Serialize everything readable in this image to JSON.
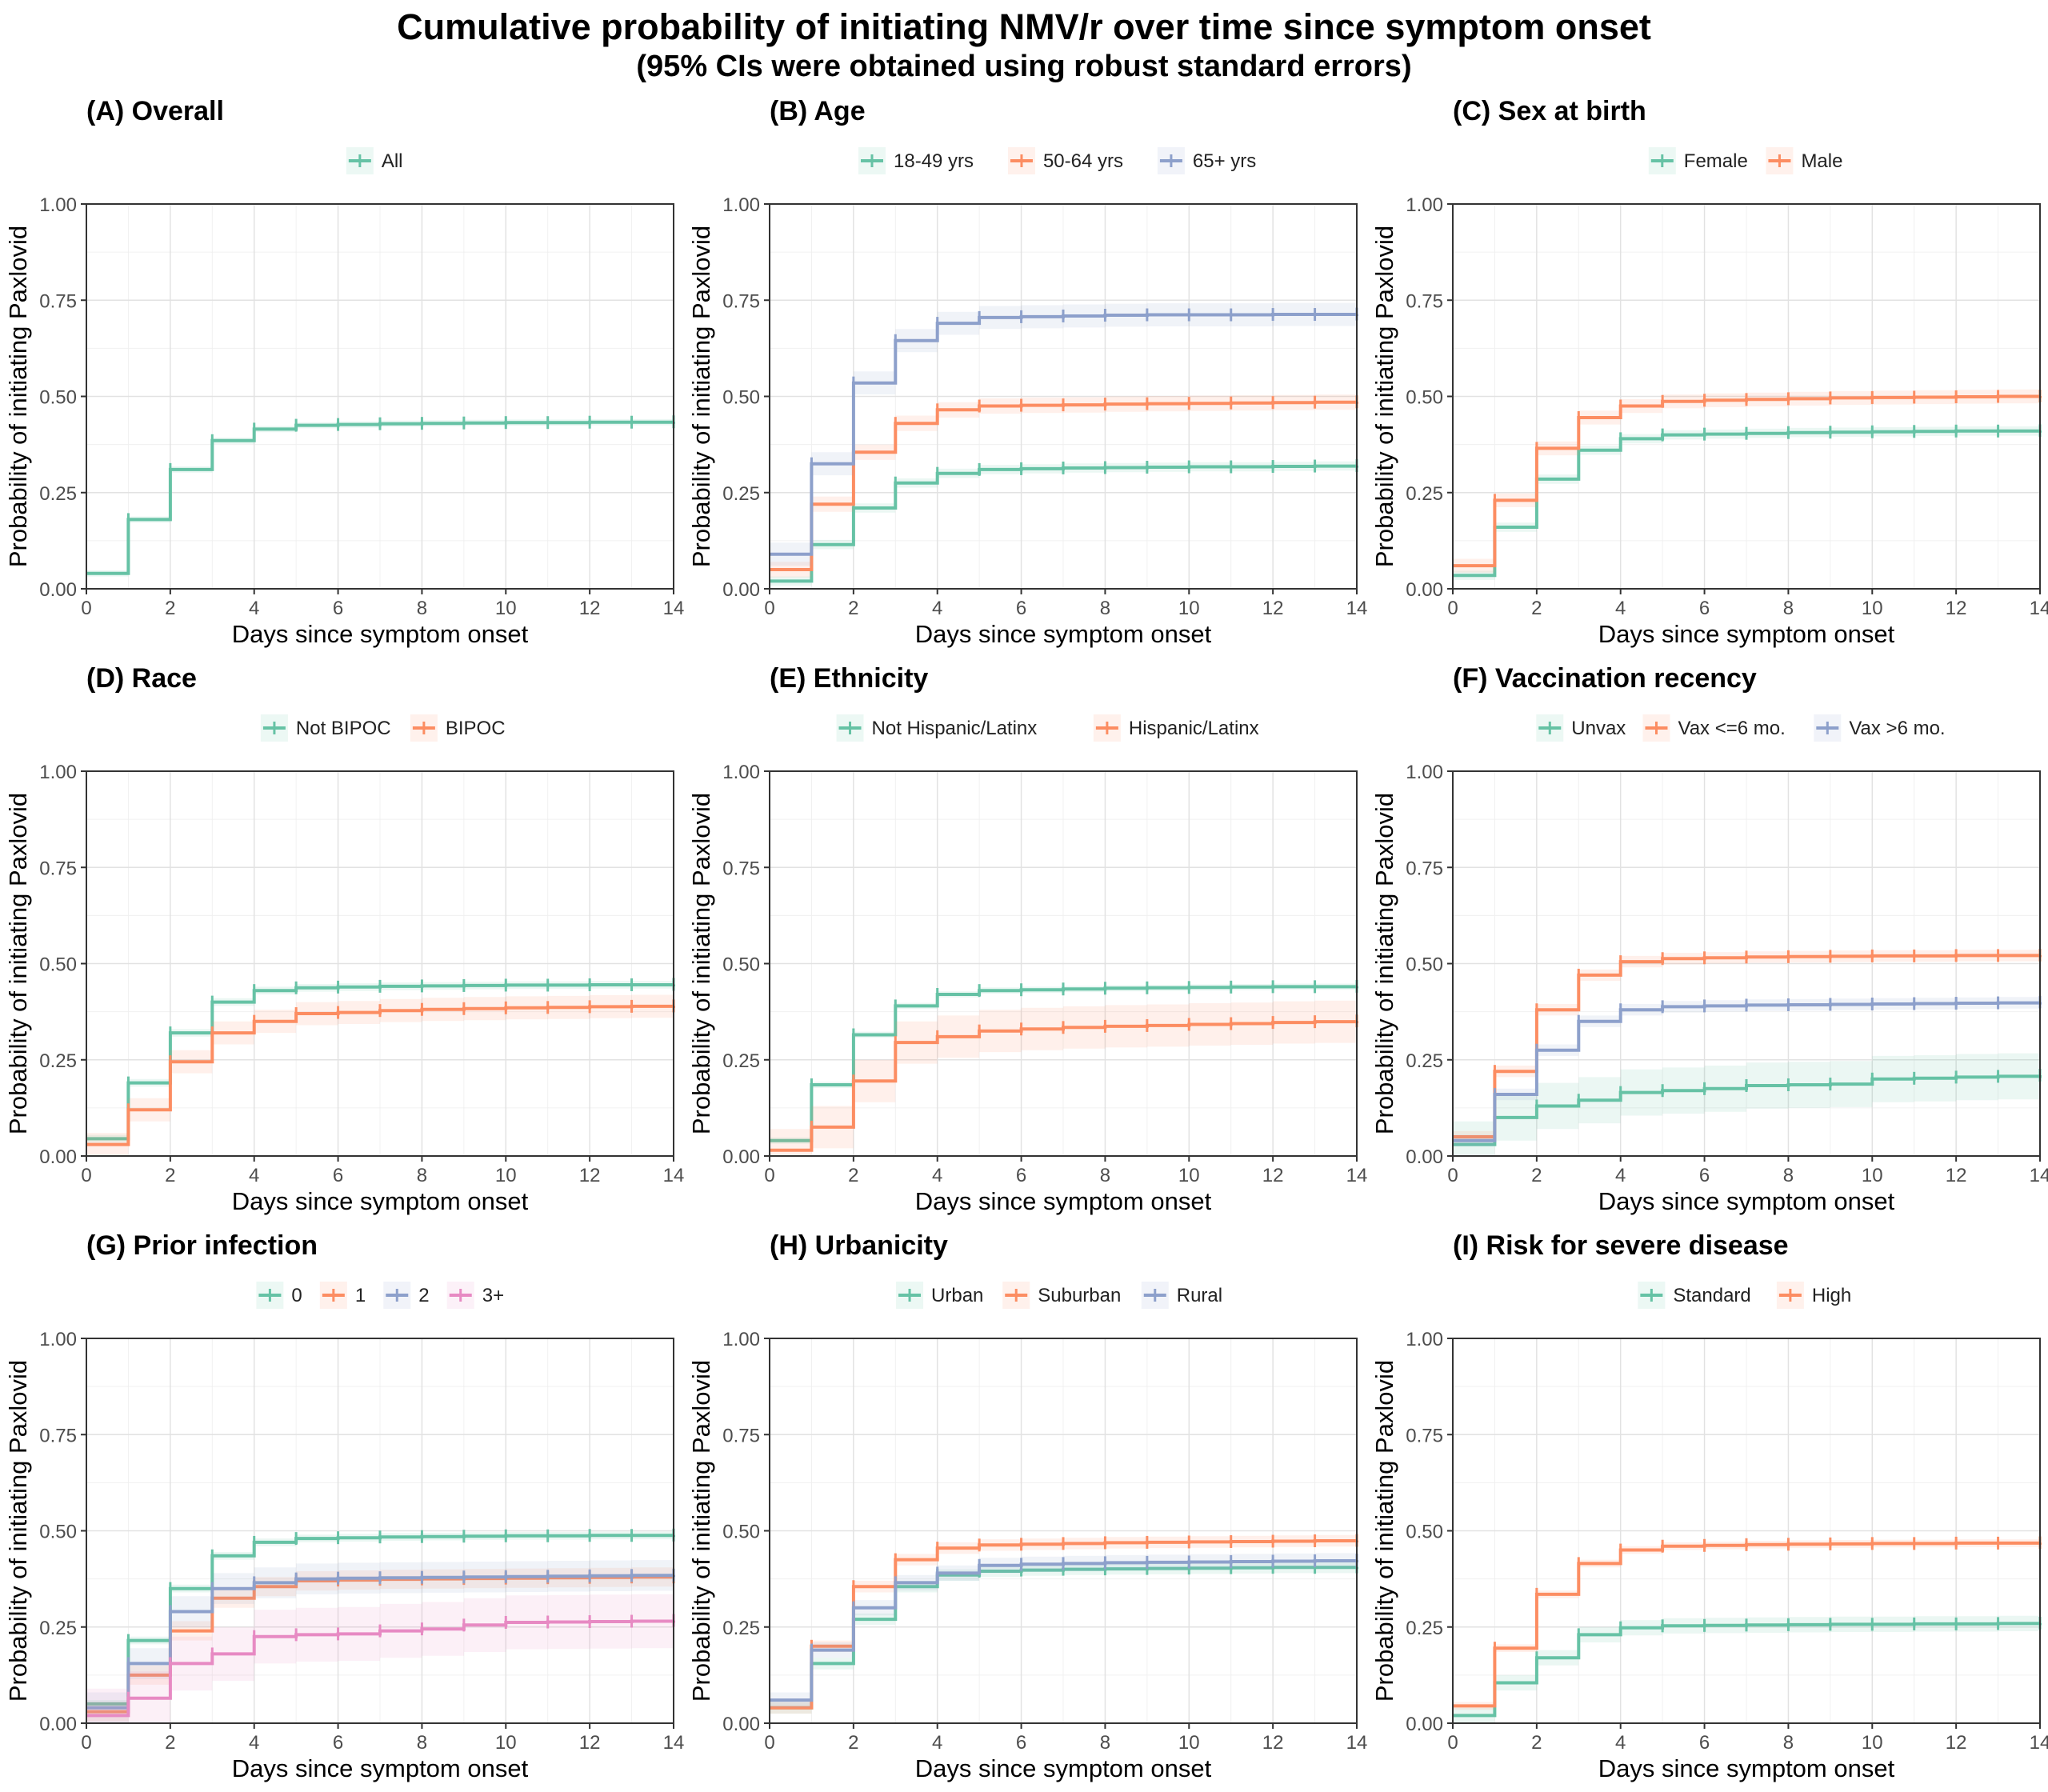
{
  "figure": {
    "title": "Cumulative probability of initiating NMV/r over time since symptom onset",
    "subtitle": "(95% CIs were obtained using robust standard errors)"
  },
  "colors": {
    "green": "#66c2a5",
    "orange": "#fc8d62",
    "blue": "#8da0cb",
    "pink": "#e78ac3"
  },
  "chart_data": [
    {
      "type": "line",
      "step": true,
      "title": "(A) Overall",
      "xlabel": "Days since symptom onset",
      "ylabel": "Probability of initiating Paxlovid",
      "xlim": [
        0,
        14
      ],
      "ylim": [
        0,
        1
      ],
      "x_ticks": [
        0,
        2,
        4,
        6,
        8,
        10,
        12,
        14
      ],
      "y_ticks": [
        "0.00",
        "0.25",
        "0.50",
        "0.75",
        "1.00"
      ],
      "grid": true,
      "legend_position": "top",
      "x": [
        0,
        1,
        2,
        3,
        4,
        5,
        6,
        7,
        8,
        9,
        10,
        11,
        12,
        13,
        14
      ],
      "series": [
        {
          "name": "All",
          "color": "#66c2a5",
          "values": [
            0.04,
            0.18,
            0.31,
            0.385,
            0.415,
            0.425,
            0.427,
            0.429,
            0.43,
            0.431,
            0.432,
            0.432,
            0.433,
            0.433,
            0.434
          ],
          "ci": 0.008
        }
      ]
    },
    {
      "type": "line",
      "step": true,
      "title": "(B) Age",
      "xlabel": "Days since symptom onset",
      "ylabel": "Probability of initiating Paxlovid",
      "xlim": [
        0,
        14
      ],
      "ylim": [
        0,
        1
      ],
      "x_ticks": [
        0,
        2,
        4,
        6,
        8,
        10,
        12,
        14
      ],
      "y_ticks": [
        "0.00",
        "0.25",
        "0.50",
        "0.75",
        "1.00"
      ],
      "grid": true,
      "legend_position": "top",
      "x": [
        0,
        1,
        2,
        3,
        4,
        5,
        6,
        7,
        8,
        9,
        10,
        11,
        12,
        13,
        14
      ],
      "series": [
        {
          "name": "18-49 yrs",
          "color": "#66c2a5",
          "values": [
            0.02,
            0.115,
            0.21,
            0.275,
            0.3,
            0.31,
            0.312,
            0.314,
            0.315,
            0.316,
            0.317,
            0.317,
            0.318,
            0.319,
            0.32
          ],
          "ci": 0.012
        },
        {
          "name": "50-64 yrs",
          "color": "#fc8d62",
          "values": [
            0.05,
            0.22,
            0.355,
            0.43,
            0.465,
            0.475,
            0.477,
            0.478,
            0.48,
            0.481,
            0.482,
            0.483,
            0.484,
            0.485,
            0.486
          ],
          "ci": 0.02
        },
        {
          "name": "65+ yrs",
          "color": "#8da0cb",
          "values": [
            0.09,
            0.325,
            0.535,
            0.645,
            0.69,
            0.705,
            0.707,
            0.709,
            0.711,
            0.712,
            0.712,
            0.712,
            0.713,
            0.713,
            0.714
          ],
          "ci": 0.03
        }
      ]
    },
    {
      "type": "line",
      "step": true,
      "title": "(C) Sex at birth",
      "xlabel": "Days since symptom onset",
      "ylabel": "Probability of initiating Paxlovid",
      "xlim": [
        0,
        14
      ],
      "ylim": [
        0,
        1
      ],
      "x_ticks": [
        0,
        2,
        4,
        6,
        8,
        10,
        12,
        14
      ],
      "y_ticks": [
        "0.00",
        "0.25",
        "0.50",
        "0.75",
        "1.00"
      ],
      "grid": true,
      "legend_position": "top",
      "x": [
        0,
        1,
        2,
        3,
        4,
        5,
        6,
        7,
        8,
        9,
        10,
        11,
        12,
        13,
        14
      ],
      "series": [
        {
          "name": "Female",
          "color": "#66c2a5",
          "values": [
            0.035,
            0.16,
            0.285,
            0.36,
            0.39,
            0.4,
            0.402,
            0.404,
            0.406,
            0.407,
            0.408,
            0.409,
            0.41,
            0.41,
            0.411
          ],
          "ci": 0.012
        },
        {
          "name": "Male",
          "color": "#fc8d62",
          "values": [
            0.06,
            0.23,
            0.365,
            0.445,
            0.475,
            0.487,
            0.49,
            0.492,
            0.494,
            0.496,
            0.497,
            0.498,
            0.499,
            0.5,
            0.501
          ],
          "ci": 0.018
        }
      ]
    },
    {
      "type": "line",
      "step": true,
      "title": "(D) Race",
      "xlabel": "Days since symptom onset",
      "ylabel": "Probability of initiating Paxlovid",
      "xlim": [
        0,
        14
      ],
      "ylim": [
        0,
        1
      ],
      "x_ticks": [
        0,
        2,
        4,
        6,
        8,
        10,
        12,
        14
      ],
      "y_ticks": [
        "0.00",
        "0.25",
        "0.50",
        "0.75",
        "1.00"
      ],
      "grid": true,
      "legend_position": "top",
      "x": [
        0,
        1,
        2,
        3,
        4,
        5,
        6,
        7,
        8,
        9,
        10,
        11,
        12,
        13,
        14
      ],
      "series": [
        {
          "name": "Not BIPOC",
          "color": "#66c2a5",
          "values": [
            0.045,
            0.19,
            0.32,
            0.4,
            0.43,
            0.437,
            0.439,
            0.441,
            0.442,
            0.443,
            0.444,
            0.444,
            0.445,
            0.445,
            0.446
          ],
          "ci": 0.01
        },
        {
          "name": "BIPOC",
          "color": "#fc8d62",
          "values": [
            0.03,
            0.12,
            0.245,
            0.32,
            0.35,
            0.37,
            0.373,
            0.378,
            0.381,
            0.383,
            0.385,
            0.386,
            0.388,
            0.389,
            0.39
          ],
          "ci": 0.03
        }
      ]
    },
    {
      "type": "line",
      "step": true,
      "title": "(E) Ethnicity",
      "xlabel": "Days since symptom onset",
      "ylabel": "Probability of initiating Paxlovid",
      "xlim": [
        0,
        14
      ],
      "ylim": [
        0,
        1
      ],
      "x_ticks": [
        0,
        2,
        4,
        6,
        8,
        10,
        12,
        14
      ],
      "y_ticks": [
        "0.00",
        "0.25",
        "0.50",
        "0.75",
        "1.00"
      ],
      "grid": true,
      "legend_position": "top",
      "x": [
        0,
        1,
        2,
        3,
        4,
        5,
        6,
        7,
        8,
        9,
        10,
        11,
        12,
        13,
        14
      ],
      "series": [
        {
          "name": "Not Hispanic/Latinx",
          "color": "#66c2a5",
          "values": [
            0.04,
            0.185,
            0.315,
            0.39,
            0.42,
            0.43,
            0.432,
            0.434,
            0.436,
            0.437,
            0.438,
            0.439,
            0.44,
            0.44,
            0.441
          ],
          "ci": 0.008
        },
        {
          "name": "Hispanic/Latinx",
          "color": "#fc8d62",
          "values": [
            0.015,
            0.075,
            0.195,
            0.295,
            0.31,
            0.325,
            0.33,
            0.334,
            0.337,
            0.339,
            0.342,
            0.344,
            0.347,
            0.349,
            0.351
          ],
          "ci": 0.055
        }
      ]
    },
    {
      "type": "line",
      "step": true,
      "title": "(F) Vaccination recency",
      "xlabel": "Days since symptom onset",
      "ylabel": "Probability of initiating Paxlovid",
      "xlim": [
        0,
        14
      ],
      "ylim": [
        0,
        1
      ],
      "x_ticks": [
        0,
        2,
        4,
        6,
        8,
        10,
        12,
        14
      ],
      "y_ticks": [
        "0.00",
        "0.25",
        "0.50",
        "0.75",
        "1.00"
      ],
      "grid": true,
      "legend_position": "top",
      "x": [
        0,
        1,
        2,
        3,
        4,
        5,
        6,
        7,
        8,
        9,
        10,
        11,
        12,
        13,
        14
      ],
      "series": [
        {
          "name": "Unvax",
          "color": "#66c2a5",
          "values": [
            0.03,
            0.1,
            0.13,
            0.145,
            0.165,
            0.17,
            0.175,
            0.183,
            0.185,
            0.187,
            0.2,
            0.202,
            0.205,
            0.207,
            0.21
          ],
          "ci": 0.06
        },
        {
          "name": "Vax <=6 mo.",
          "color": "#fc8d62",
          "values": [
            0.05,
            0.22,
            0.38,
            0.47,
            0.505,
            0.513,
            0.515,
            0.517,
            0.518,
            0.519,
            0.52,
            0.52,
            0.521,
            0.521,
            0.522
          ],
          "ci": 0.015
        },
        {
          "name": "Vax >6 mo.",
          "color": "#8da0cb",
          "values": [
            0.04,
            0.16,
            0.275,
            0.35,
            0.38,
            0.388,
            0.39,
            0.392,
            0.393,
            0.394,
            0.395,
            0.396,
            0.397,
            0.398,
            0.4
          ],
          "ci": 0.015
        }
      ]
    },
    {
      "type": "line",
      "step": true,
      "title": "(G) Prior infection",
      "xlabel": "Days since symptom onset",
      "ylabel": "Probability of initiating Paxlovid",
      "xlim": [
        0,
        14
      ],
      "ylim": [
        0,
        1
      ],
      "x_ticks": [
        0,
        2,
        4,
        6,
        8,
        10,
        12,
        14
      ],
      "y_ticks": [
        "0.00",
        "0.25",
        "0.50",
        "0.75",
        "1.00"
      ],
      "grid": true,
      "legend_position": "top",
      "x": [
        0,
        1,
        2,
        3,
        4,
        5,
        6,
        7,
        8,
        9,
        10,
        11,
        12,
        13,
        14
      ],
      "series": [
        {
          "name": "0",
          "color": "#66c2a5",
          "values": [
            0.05,
            0.215,
            0.35,
            0.435,
            0.47,
            0.48,
            0.482,
            0.484,
            0.485,
            0.486,
            0.487,
            0.487,
            0.488,
            0.488,
            0.489
          ],
          "ci": 0.01
        },
        {
          "name": "1",
          "color": "#fc8d62",
          "values": [
            0.03,
            0.125,
            0.24,
            0.325,
            0.355,
            0.37,
            0.372,
            0.374,
            0.375,
            0.376,
            0.377,
            0.378,
            0.379,
            0.38,
            0.38
          ],
          "ci": 0.025
        },
        {
          "name": "2",
          "color": "#8da0cb",
          "values": [
            0.04,
            0.155,
            0.29,
            0.35,
            0.365,
            0.375,
            0.377,
            0.378,
            0.379,
            0.38,
            0.381,
            0.382,
            0.383,
            0.384,
            0.385
          ],
          "ci": 0.04
        },
        {
          "name": "3+",
          "color": "#e78ac3",
          "values": [
            0.02,
            0.065,
            0.155,
            0.18,
            0.225,
            0.23,
            0.232,
            0.24,
            0.245,
            0.255,
            0.262,
            0.263,
            0.264,
            0.265,
            0.267
          ],
          "ci": 0.07
        }
      ]
    },
    {
      "type": "line",
      "step": true,
      "title": "(H) Urbanicity",
      "xlabel": "Days since symptom onset",
      "ylabel": "Probability of initiating Paxlovid",
      "xlim": [
        0,
        14
      ],
      "ylim": [
        0,
        1
      ],
      "x_ticks": [
        0,
        2,
        4,
        6,
        8,
        10,
        12,
        14
      ],
      "y_ticks": [
        "0.00",
        "0.25",
        "0.50",
        "0.75",
        "1.00"
      ],
      "grid": true,
      "legend_position": "top",
      "x": [
        0,
        1,
        2,
        3,
        4,
        5,
        6,
        7,
        8,
        9,
        10,
        11,
        12,
        13,
        14
      ],
      "series": [
        {
          "name": "Urban",
          "color": "#66c2a5",
          "values": [
            0.04,
            0.155,
            0.27,
            0.355,
            0.385,
            0.395,
            0.398,
            0.4,
            0.401,
            0.402,
            0.403,
            0.404,
            0.405,
            0.405,
            0.406
          ],
          "ci": 0.015
        },
        {
          "name": "Suburban",
          "color": "#fc8d62",
          "values": [
            0.04,
            0.2,
            0.355,
            0.425,
            0.455,
            0.463,
            0.465,
            0.467,
            0.469,
            0.47,
            0.471,
            0.472,
            0.473,
            0.474,
            0.475
          ],
          "ci": 0.015
        },
        {
          "name": "Rural",
          "color": "#8da0cb",
          "values": [
            0.06,
            0.19,
            0.3,
            0.365,
            0.39,
            0.41,
            0.413,
            0.415,
            0.417,
            0.418,
            0.419,
            0.42,
            0.421,
            0.422,
            0.424
          ],
          "ci": 0.02
        }
      ]
    },
    {
      "type": "line",
      "step": true,
      "title": "(I) Risk for severe disease",
      "xlabel": "Days since symptom onset",
      "ylabel": "Probability of initiating Paxlovid",
      "xlim": [
        0,
        14
      ],
      "ylim": [
        0,
        1
      ],
      "x_ticks": [
        0,
        2,
        4,
        6,
        8,
        10,
        12,
        14
      ],
      "y_ticks": [
        "0.00",
        "0.25",
        "0.50",
        "0.75",
        "1.00"
      ],
      "grid": true,
      "legend_position": "top",
      "x": [
        0,
        1,
        2,
        3,
        4,
        5,
        6,
        7,
        8,
        9,
        10,
        11,
        12,
        13,
        14
      ],
      "series": [
        {
          "name": "Standard",
          "color": "#66c2a5",
          "values": [
            0.02,
            0.105,
            0.17,
            0.23,
            0.248,
            0.253,
            0.254,
            0.255,
            0.256,
            0.257,
            0.257,
            0.258,
            0.258,
            0.259,
            0.26
          ],
          "ci": 0.02
        },
        {
          "name": "High",
          "color": "#fc8d62",
          "values": [
            0.045,
            0.195,
            0.335,
            0.415,
            0.45,
            0.46,
            0.462,
            0.464,
            0.465,
            0.466,
            0.467,
            0.467,
            0.468,
            0.468,
            0.469
          ],
          "ci": 0.01
        }
      ]
    }
  ]
}
